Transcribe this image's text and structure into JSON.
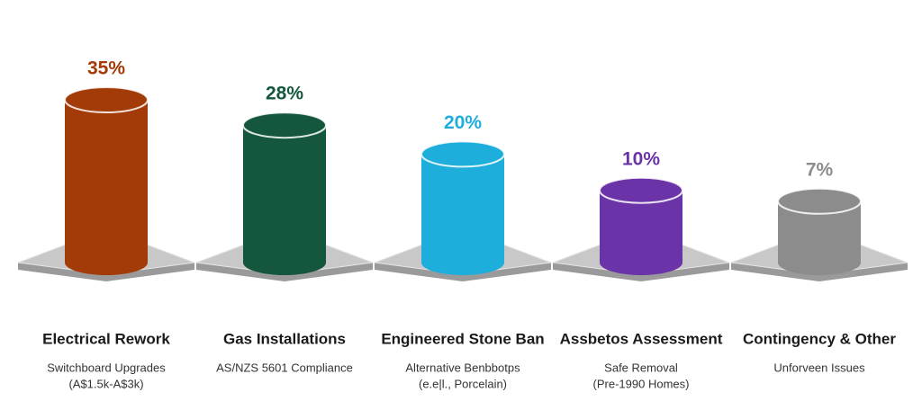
{
  "chart_data": {
    "type": "bar",
    "categories": [
      "Electrical Rework",
      "Gas Installations",
      "Engineered Stone Ban",
      "Assbetos Assessment",
      "Contingency & Other"
    ],
    "subtitles": [
      [
        "Switchboard Upgrades",
        "(A$1.5k-A$3k)"
      ],
      [
        "AS/NZS 5601 Compliance"
      ],
      [
        "Alternative Benbbotps",
        "(e.e|l., Porcelain)"
      ],
      [
        "Safe Removal",
        "(Pre-1990 Homes)"
      ],
      [
        "Unforveen Issues"
      ]
    ],
    "values": [
      35,
      28,
      20,
      10,
      7
    ],
    "value_labels": [
      "35%",
      "28%",
      "20%",
      "10%",
      "7%"
    ],
    "colors": [
      "#a33b08",
      "#14573c",
      "#1eaedc",
      "#6a34a8",
      "#8c8c8c"
    ]
  }
}
